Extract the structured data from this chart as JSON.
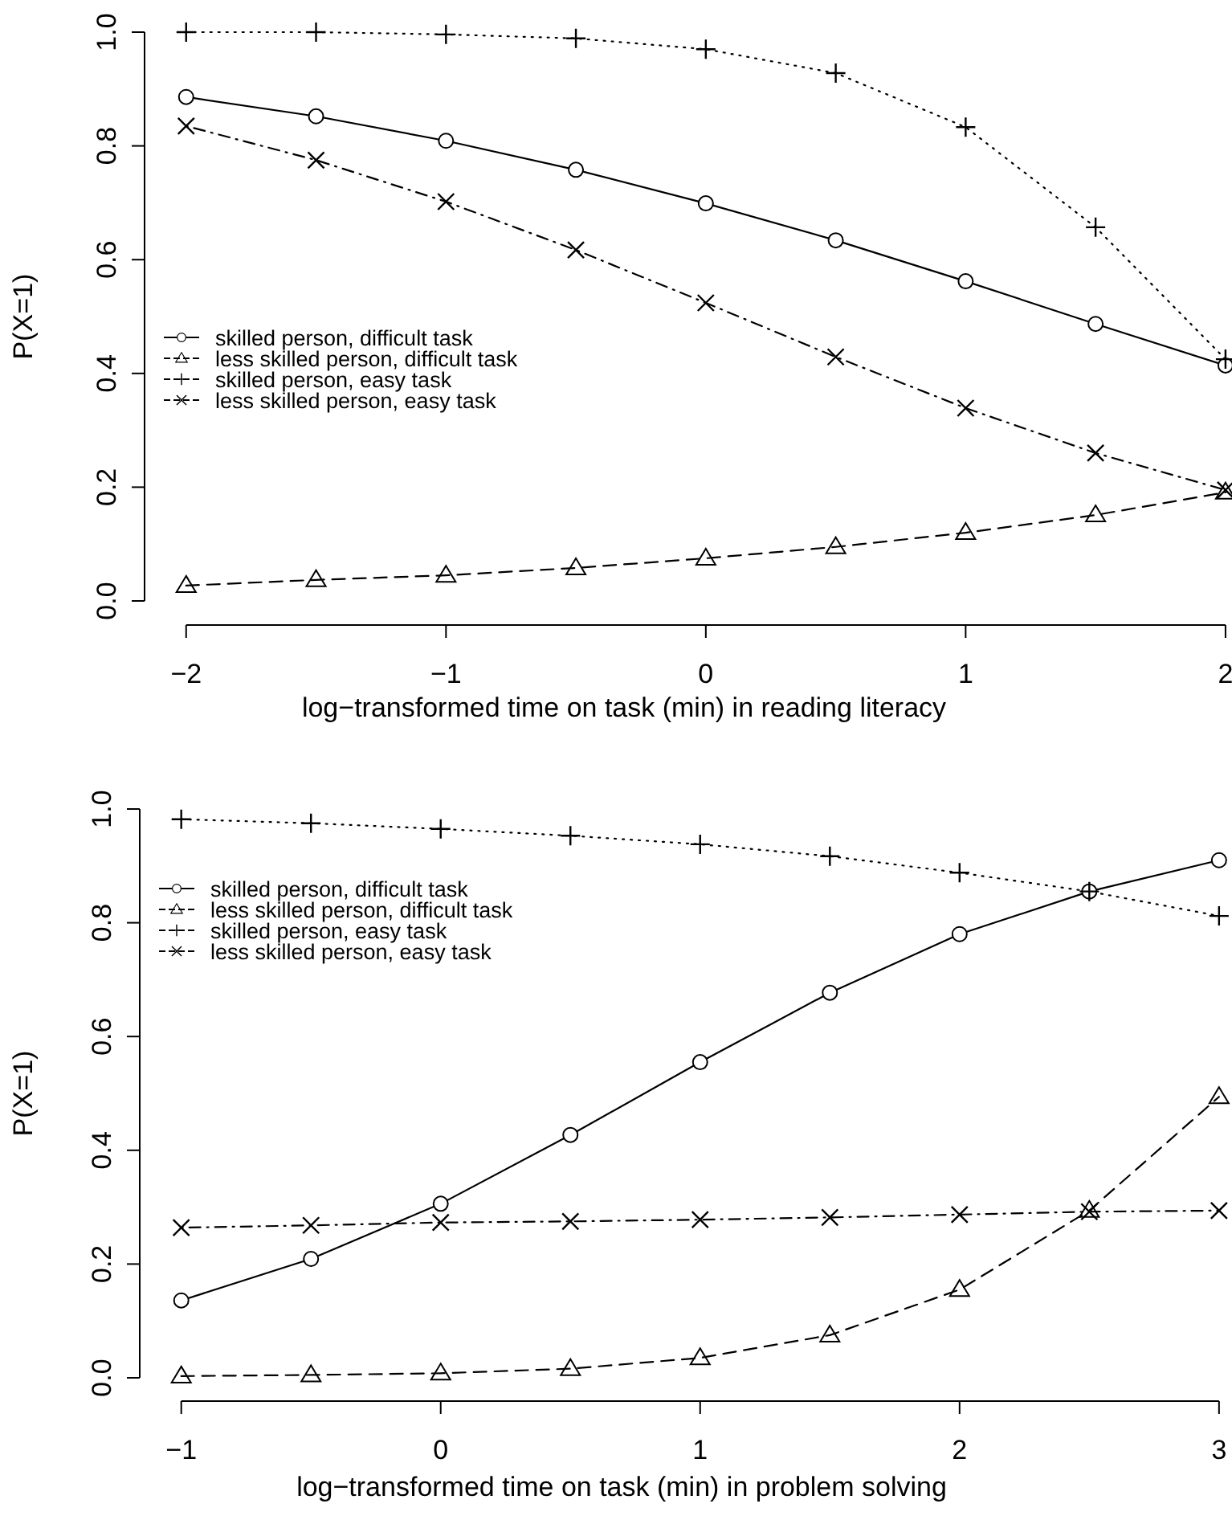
{
  "chart_data": [
    {
      "type": "line",
      "xlabel": "log−transformed time on task (min) in reading literacy",
      "ylabel": "P(X=1)",
      "x": [
        -2,
        -1.5,
        -1,
        -0.5,
        0,
        0.5,
        1,
        1.5,
        2
      ],
      "xlim": [
        -2.16,
        2.025
      ],
      "xticks": [
        -2,
        -1,
        0,
        1,
        2
      ],
      "ylim": [
        0,
        1
      ],
      "yticks": [
        {
          "value": 0,
          "label": "0.0"
        },
        {
          "value": 0.2,
          "label": "0.2"
        },
        {
          "value": 0.4,
          "label": "0.4"
        },
        {
          "value": 0.6,
          "label": "0.6"
        },
        {
          "value": 0.8,
          "label": "0.8"
        },
        {
          "value": 1,
          "label": "1.0"
        }
      ],
      "grid": false,
      "legend": "left",
      "series": [
        {
          "name": "skilled person, difficult task",
          "color": "#000000",
          "marker": "circle",
          "line_style": "solid",
          "values": [
            0.886,
            0.852,
            0.809,
            0.758,
            0.699,
            0.634,
            0.562,
            0.487,
            0.414
          ]
        },
        {
          "name": "less skilled person, difficult task",
          "color": "#000000",
          "marker": "triangle",
          "line_style": "dashed",
          "values": [
            0.027,
            0.037,
            0.045,
            0.058,
            0.075,
            0.095,
            0.12,
            0.151,
            0.191
          ]
        },
        {
          "name": "skilled person, easy task",
          "color": "#000000",
          "marker": "cross",
          "line_style": "dotted",
          "values": [
            1.0,
            1.0,
            0.996,
            0.989,
            0.97,
            0.928,
            0.833,
            0.657,
            0.425
          ]
        },
        {
          "name": "less skilled person, easy task",
          "color": "#000000",
          "marker": "x",
          "line_style": "dashdot",
          "values": [
            0.835,
            0.775,
            0.702,
            0.617,
            0.524,
            0.429,
            0.339,
            0.26,
            0.195
          ]
        }
      ]
    },
    {
      "type": "line",
      "xlabel": "log−transformed time on task (min) in problem solving",
      "ylabel": "P(X=1)",
      "x": [
        -1,
        -0.5,
        0,
        0.5,
        1,
        1.5,
        2,
        2.5,
        3
      ],
      "xlim": [
        -1.16,
        3.05
      ],
      "xticks": [
        -1,
        0,
        1,
        2,
        3
      ],
      "ylim": [
        0,
        1
      ],
      "yticks": [
        {
          "value": 0,
          "label": "0.0"
        },
        {
          "value": 0.2,
          "label": "0.2"
        },
        {
          "value": 0.4,
          "label": "0.4"
        },
        {
          "value": 0.6,
          "label": "0.6"
        },
        {
          "value": 0.8,
          "label": "0.8"
        },
        {
          "value": 1,
          "label": "1.0"
        }
      ],
      "grid": false,
      "legend": "top left",
      "series": [
        {
          "name": "skilled person, difficult task",
          "color": "#000000",
          "marker": "circle",
          "line_style": "solid",
          "values": [
            0.136,
            0.209,
            0.306,
            0.427,
            0.555,
            0.677,
            0.78,
            0.855,
            0.91
          ]
        },
        {
          "name": "less skilled person, difficult task",
          "color": "#000000",
          "marker": "triangle",
          "line_style": "dashed",
          "values": [
            0.003,
            0.005,
            0.008,
            0.016,
            0.035,
            0.075,
            0.155,
            0.294,
            0.494
          ]
        },
        {
          "name": "skilled person, easy task",
          "color": "#000000",
          "marker": "cross",
          "line_style": "dotted",
          "values": [
            0.982,
            0.975,
            0.965,
            0.953,
            0.938,
            0.917,
            0.888,
            0.855,
            0.812
          ]
        },
        {
          "name": "less skilled person, easy task",
          "color": "#000000",
          "marker": "x",
          "line_style": "dashdot",
          "values": [
            0.264,
            0.268,
            0.273,
            0.275,
            0.278,
            0.282,
            0.287,
            0.292,
            0.294
          ]
        }
      ]
    }
  ]
}
